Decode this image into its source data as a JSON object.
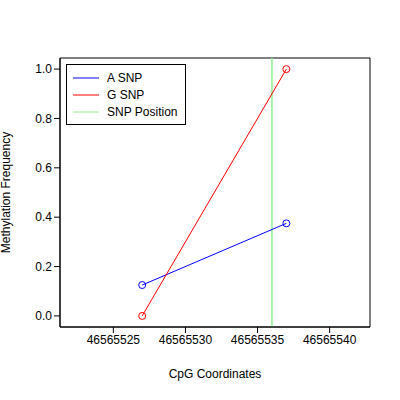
{
  "chart_data": {
    "type": "line",
    "xlabel": "CpG Coordinates",
    "ylabel": "Methylation Frequency",
    "xlim": [
      46565521.3,
      46565542.8
    ],
    "xticks": [
      46565525,
      46565530,
      46565535,
      46565540
    ],
    "ylim": [
      -0.045,
      1.045
    ],
    "yticks": [
      {
        "value": 0,
        "label": "0.0"
      },
      {
        "value": 0.2,
        "label": "0.2"
      },
      {
        "value": 0.4,
        "label": "0.4"
      },
      {
        "value": 0.6,
        "label": "0.6"
      },
      {
        "value": 0.8,
        "label": "0.8"
      },
      {
        "value": 1,
        "label": "1.0"
      }
    ],
    "series": [
      {
        "name": "A SNP",
        "color": "#0000ff",
        "marker": "circle",
        "x": [
          46565527,
          46565537
        ],
        "values": [
          0.125,
          0.375
        ]
      },
      {
        "name": "G SNP",
        "color": "#ff0000",
        "marker": "circle",
        "x": [
          46565527,
          46565537
        ],
        "values": [
          0,
          1
        ]
      }
    ],
    "reference_line": {
      "name": "SNP Position",
      "x": 46565536,
      "color": "#90ee90"
    },
    "legend": "upper left",
    "grid": false
  }
}
